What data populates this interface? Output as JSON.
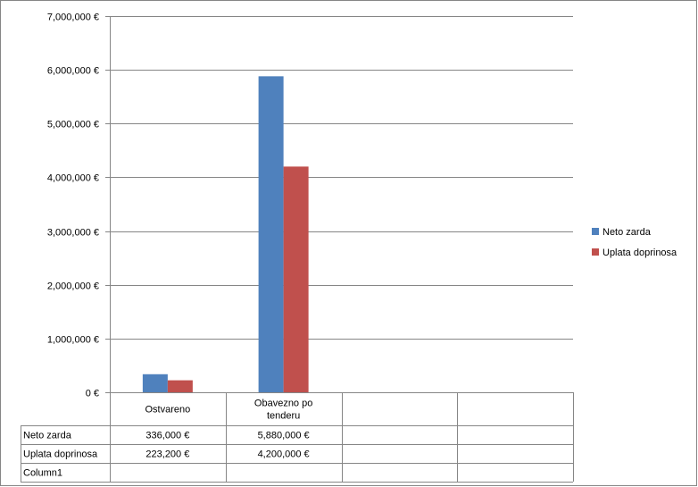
{
  "chart_data": {
    "type": "bar",
    "categories": [
      "Ostvareno",
      "Obavezno po tenderu",
      "",
      ""
    ],
    "category_lines": [
      [
        "Ostvareno"
      ],
      [
        "Obavezno po",
        "tenderu"
      ],
      [],
      []
    ],
    "series": [
      {
        "name": "Neto zarda",
        "values": [
          336000,
          5880000,
          null,
          null
        ],
        "color": "#4f81bd",
        "table_values": [
          "336,000 €",
          "5,880,000 €",
          "",
          ""
        ]
      },
      {
        "name": "Uplata doprinosa",
        "values": [
          223200,
          4200000,
          null,
          null
        ],
        "color": "#c0504d",
        "table_values": [
          "223,200 €",
          "4,200,000 €",
          "",
          ""
        ]
      }
    ],
    "extra_table_rows": [
      "Column1"
    ],
    "ylim": [
      0,
      7000000
    ],
    "yticks": [
      0,
      1000000,
      2000000,
      3000000,
      4000000,
      5000000,
      6000000,
      7000000
    ],
    "ytick_labels": [
      "0 €",
      "1,000,000 €",
      "2,000,000 €",
      "3,000,000 €",
      "4,000,000 €",
      "5,000,000 €",
      "6,000,000 €",
      "7,000,000 €"
    ],
    "grid": true,
    "legend": "right",
    "title": "",
    "xlabel": "",
    "ylabel": ""
  }
}
